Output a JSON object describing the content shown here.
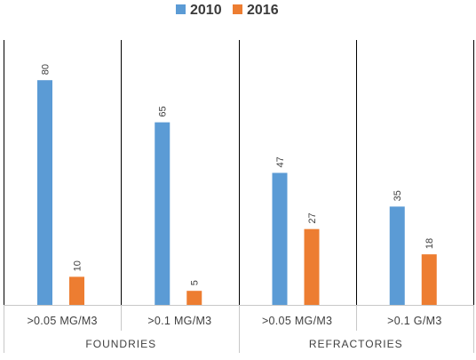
{
  "chart_data": {
    "type": "bar",
    "groups": [
      {
        "label": "FOUNDRIES",
        "categories": [
          ">0.05 MG/M3",
          ">0.1 MG/M3"
        ]
      },
      {
        "label": "REFRACTORIES",
        "categories": [
          ">0.05 MG/M3",
          ">0.1 G/M3"
        ]
      }
    ],
    "categories": [
      ">0.05 MG/M3",
      ">0.1 MG/M3",
      ">0.05 MG/M3",
      ">0.1 G/M3"
    ],
    "series": [
      {
        "name": "2010",
        "color": "#5B9BD5",
        "values": [
          80,
          65,
          47,
          35
        ]
      },
      {
        "name": "2016",
        "color": "#ED7D31",
        "values": [
          10,
          5,
          27,
          18
        ]
      }
    ],
    "ylim": [
      0,
      85
    ],
    "legend_position": "top-center",
    "grid": false,
    "data_labels": true
  }
}
